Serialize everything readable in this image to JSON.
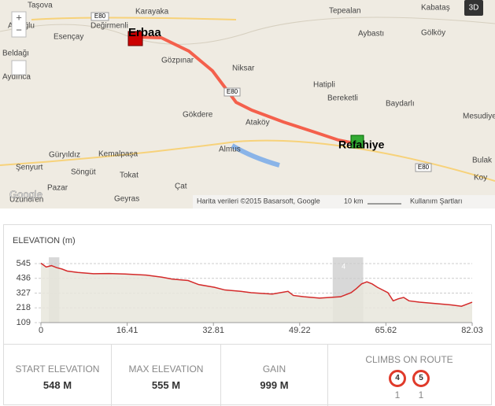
{
  "map": {
    "labels": [
      "Taşova",
      "Karayaka",
      "Tepealan",
      "Kabataş",
      "Anıoğlu",
      "Değirmenli",
      "Esençay",
      "Aybastı",
      "Gölköy",
      "Beldağı",
      "Aydınca",
      "Gözpınar",
      "Niksar",
      "Hatipli",
      "Bereketli",
      "Baydarlı",
      "Mesudiye",
      "Gökdere",
      "Ataköy",
      "Almus",
      "Güryıldız",
      "Kemalpaşa",
      "Şenyurt",
      "Söngüt",
      "Pazar",
      "Tokat",
      "Çat",
      "Geyras",
      "Uzunören",
      "Koy",
      "Bulak"
    ],
    "start": "Erbaa",
    "end": "Refahiye",
    "road": "E80",
    "button_3d": "3D",
    "attribution": "Harita verileri ©2015 Basarsoft, Google",
    "scale": "10 km",
    "terms": "Kullanım Şartları",
    "logo": "Google"
  },
  "chart_data": {
    "type": "area",
    "title": "ELEVATION (m)",
    "x": [
      0,
      1,
      2,
      3,
      4,
      5,
      7,
      10,
      13,
      16,
      20,
      23,
      25,
      28,
      30,
      33,
      35,
      38,
      40,
      44,
      47,
      48,
      50,
      53,
      57,
      59,
      60,
      61,
      62,
      63,
      64,
      66,
      67,
      68,
      69,
      70,
      72,
      75,
      78,
      80,
      82.03
    ],
    "values": [
      548,
      520,
      530,
      515,
      505,
      490,
      480,
      470,
      472,
      468,
      460,
      445,
      430,
      420,
      390,
      370,
      350,
      340,
      330,
      320,
      340,
      310,
      300,
      290,
      300,
      330,
      360,
      395,
      410,
      395,
      370,
      330,
      270,
      285,
      295,
      270,
      260,
      250,
      240,
      230,
      260
    ],
    "color": "#d42a2a",
    "xlim": [
      0,
      82.03
    ],
    "xticks": [
      0,
      16.41,
      32.81,
      49.22,
      65.62,
      82.03
    ],
    "ylim": [
      109,
      580
    ],
    "yticks": [
      545,
      436,
      327,
      218,
      109
    ],
    "grid": true,
    "climb_regions": [
      {
        "xstart": 1.5,
        "xend": 3.5
      },
      {
        "xstart": 55.5,
        "xend": 61.3,
        "label": "4"
      }
    ]
  },
  "stats": [
    {
      "label": "START ELEVATION",
      "value": "548 M"
    },
    {
      "label": "MAX ELEVATION",
      "value": "555 M"
    },
    {
      "label": "GAIN",
      "value": "999 M"
    }
  ],
  "climbs": {
    "title": "CLIMBS ON ROUTE",
    "items": [
      {
        "category": "4",
        "count": "1"
      },
      {
        "category": "5",
        "count": "1"
      }
    ]
  }
}
